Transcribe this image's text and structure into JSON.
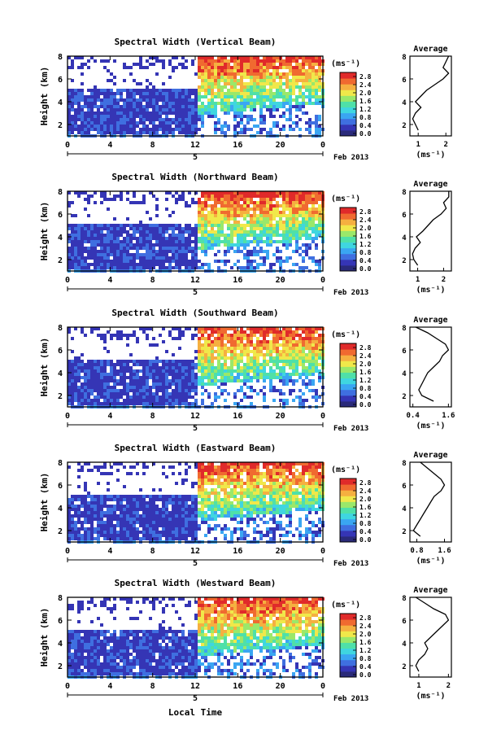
{
  "shared": {
    "height_axis_label": "Height (km)",
    "y_ticks": [
      "2",
      "4",
      "6",
      "8"
    ],
    "x_ticks": [
      "0",
      "4",
      "8",
      "12",
      "16",
      "20",
      "0"
    ],
    "day_label": "5",
    "date_label": "Feb 2013",
    "unit_label": "(ms⁻¹)",
    "colorbar_ticks": [
      "2.8",
      "2.4",
      "2.0",
      "1.6",
      "1.2",
      "0.8",
      "0.4",
      "0.0"
    ],
    "profile_title": "Average",
    "profile_unit": "(ms⁻¹)",
    "x_axis_title": "Local Time",
    "colors": [
      "#2a2a7a",
      "#3535b5",
      "#3f6fe0",
      "#3aa6f2",
      "#3fd6e0",
      "#4fe0a8",
      "#9ae86a",
      "#f0e84a",
      "#f5b040",
      "#f06a30",
      "#e02a2a"
    ]
  },
  "chart_data": [
    {
      "type": "heatmap",
      "title": "Spectral Width (Vertical Beam)",
      "xlabel": "Local Time",
      "ylabel": "Height (km)",
      "xlim": [
        0,
        24
      ],
      "ylim": [
        1,
        8
      ],
      "colorbar": {
        "unit": "ms-1",
        "range": [
          0.0,
          2.8
        ]
      },
      "profile": {
        "title": "Average",
        "xticks": [
          "1",
          "2"
        ],
        "xlim": [
          0.7,
          2.2
        ],
        "heights": [
          1.5,
          2,
          2.5,
          3,
          3.5,
          4,
          4.5,
          5,
          5.5,
          6,
          6.5,
          7,
          7.5,
          8
        ],
        "values": [
          1.0,
          0.9,
          0.8,
          0.9,
          1.1,
          0.9,
          1.1,
          1.3,
          1.6,
          1.9,
          2.1,
          1.9,
          2.0,
          2.1
        ]
      }
    },
    {
      "type": "heatmap",
      "title": "Spectral Width (Northward Beam)",
      "xlabel": "Local Time",
      "ylabel": "Height (km)",
      "xlim": [
        0,
        24
      ],
      "ylim": [
        1,
        8
      ],
      "colorbar": {
        "unit": "ms-1",
        "range": [
          0.0,
          2.8
        ]
      },
      "profile": {
        "title": "Average",
        "xticks": [
          "1",
          "2"
        ],
        "xlim": [
          0.7,
          2.3
        ],
        "heights": [
          1.5,
          2,
          2.5,
          3,
          3.5,
          4,
          4.5,
          5,
          5.5,
          6,
          6.5,
          7,
          7.5,
          8
        ],
        "values": [
          1.0,
          0.85,
          0.8,
          0.9,
          1.1,
          0.95,
          1.2,
          1.4,
          1.6,
          1.9,
          2.1,
          2.0,
          2.2,
          2.2
        ]
      }
    },
    {
      "type": "heatmap",
      "title": "Spectral Width (Southward Beam)",
      "xlabel": "Local Time",
      "ylabel": "Height (km)",
      "xlim": [
        0,
        24
      ],
      "ylim": [
        1,
        8
      ],
      "colorbar": {
        "unit": "ms-1",
        "range": [
          0.0,
          2.8
        ]
      },
      "profile": {
        "title": "Average",
        "xticks": [
          "0.4",
          "1.6"
        ],
        "xlim": [
          0.3,
          1.7
        ],
        "heights": [
          1.5,
          2,
          2.5,
          3,
          3.5,
          4,
          4.5,
          5,
          5.5,
          6,
          6.5,
          7,
          7.5,
          8
        ],
        "values": [
          1.1,
          0.7,
          0.6,
          0.7,
          0.8,
          0.9,
          1.1,
          1.3,
          1.4,
          1.6,
          1.5,
          1.2,
          0.9,
          0.5
        ]
      }
    },
    {
      "type": "heatmap",
      "title": "Spectral Width (Eastward Beam)",
      "xlabel": "Local Time",
      "ylabel": "Height (km)",
      "xlim": [
        0,
        24
      ],
      "ylim": [
        1,
        8
      ],
      "colorbar": {
        "unit": "ms-1",
        "range": [
          0.0,
          2.8
        ]
      },
      "profile": {
        "title": "Average",
        "xticks": [
          "0.8",
          "1.6"
        ],
        "xlim": [
          0.6,
          1.8
        ],
        "heights": [
          1.5,
          2,
          2.5,
          3,
          3.5,
          4,
          4.5,
          5,
          5.5,
          6,
          6.5,
          7,
          7.5,
          8
        ],
        "values": [
          0.9,
          0.7,
          0.8,
          0.9,
          1.0,
          1.1,
          1.2,
          1.3,
          1.5,
          1.6,
          1.5,
          1.3,
          1.1,
          0.9
        ]
      }
    },
    {
      "type": "heatmap",
      "title": "Spectral Width (Westward Beam)",
      "xlabel": "Local Time",
      "ylabel": "Height (km)",
      "xlim": [
        0,
        24
      ],
      "ylim": [
        1,
        8
      ],
      "colorbar": {
        "unit": "ms-1",
        "range": [
          0.0,
          2.8
        ]
      },
      "profile": {
        "title": "Average",
        "xticks": [
          "1",
          "2"
        ],
        "xlim": [
          0.7,
          2.1
        ],
        "heights": [
          1.5,
          2,
          2.5,
          3,
          3.5,
          4,
          4.5,
          5,
          5.5,
          6,
          6.5,
          7,
          7.5,
          8
        ],
        "values": [
          1.0,
          0.9,
          1.0,
          1.2,
          1.3,
          1.2,
          1.4,
          1.6,
          1.8,
          2.0,
          1.9,
          1.5,
          1.2,
          0.9
        ]
      }
    }
  ]
}
